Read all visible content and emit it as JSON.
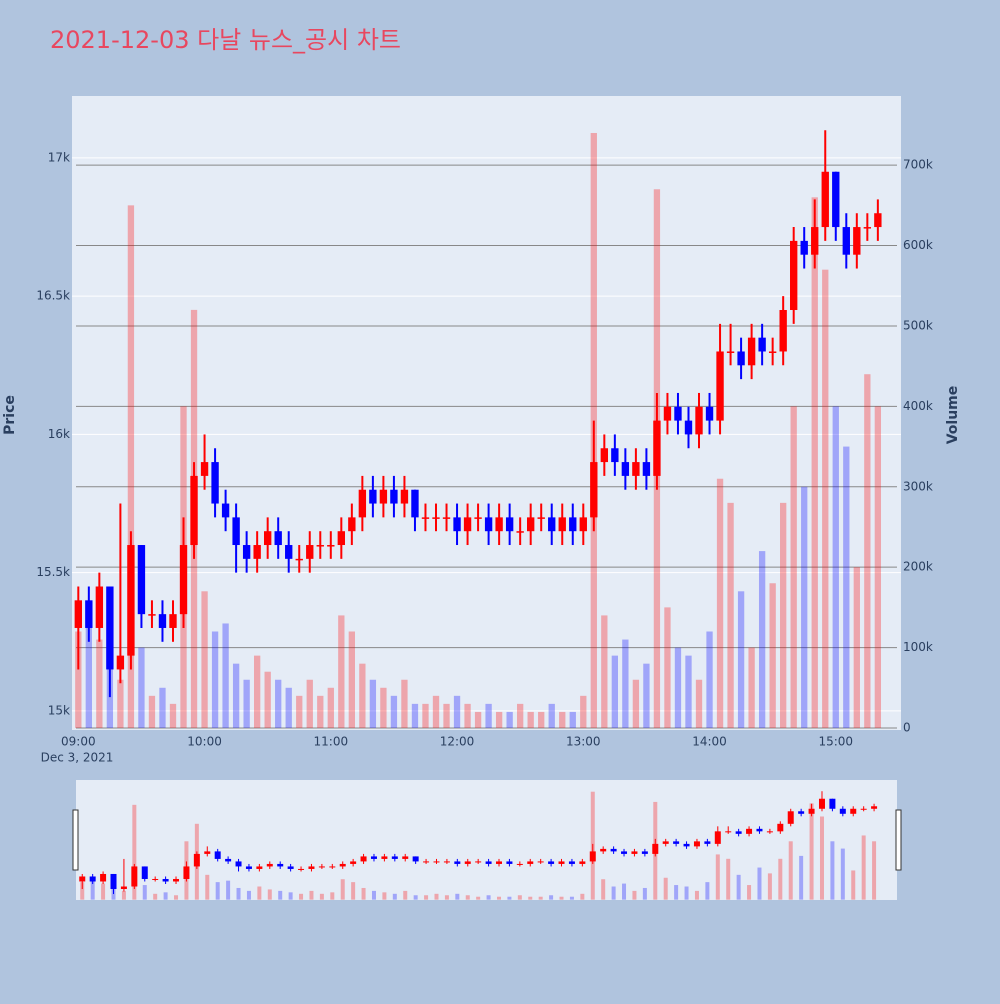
{
  "chart_data": {
    "type": "candlestick",
    "title": "2021-12-03 다날 뉴스_공시 차트",
    "y_title": "Price",
    "y2_title": "Volume",
    "x_sublabel": "Dec 3, 2021",
    "increasing_color": "#ff0000",
    "decreasing_color": "#0000ff",
    "x": [
      "09:00",
      "09:05",
      "09:10",
      "09:15",
      "09:20",
      "09:25",
      "09:30",
      "09:35",
      "09:40",
      "09:45",
      "09:50",
      "09:55",
      "10:00",
      "10:05",
      "10:10",
      "10:15",
      "10:20",
      "10:25",
      "10:30",
      "10:35",
      "10:40",
      "10:45",
      "10:50",
      "10:55",
      "11:00",
      "11:05",
      "11:10",
      "11:15",
      "11:20",
      "11:25",
      "11:30",
      "11:35",
      "11:40",
      "11:45",
      "11:50",
      "11:55",
      "12:00",
      "12:05",
      "12:10",
      "12:15",
      "12:20",
      "12:25",
      "12:30",
      "12:35",
      "12:40",
      "12:45",
      "12:50",
      "12:55",
      "13:00",
      "13:05",
      "13:10",
      "13:15",
      "13:20",
      "13:25",
      "13:30",
      "13:35",
      "13:40",
      "13:45",
      "13:50",
      "13:55",
      "14:00",
      "14:05",
      "14:10",
      "14:15",
      "14:20",
      "14:25",
      "14:30",
      "14:35",
      "14:40",
      "14:45",
      "14:50",
      "14:55",
      "15:00",
      "15:05",
      "15:10",
      "15:15",
      "15:20"
    ],
    "open": [
      15300,
      15400,
      15300,
      15450,
      15150,
      15200,
      15600,
      15350,
      15350,
      15300,
      15350,
      15600,
      15850,
      15900,
      15750,
      15700,
      15600,
      15550,
      15600,
      15650,
      15600,
      15550,
      15550,
      15600,
      15600,
      15600,
      15650,
      15700,
      15800,
      15750,
      15800,
      15750,
      15800,
      15700,
      15700,
      15700,
      15700,
      15650,
      15700,
      15700,
      15650,
      15700,
      15650,
      15650,
      15700,
      15700,
      15650,
      15700,
      15650,
      15700,
      15900,
      15950,
      15900,
      15850,
      15900,
      15850,
      16050,
      16100,
      16050,
      16000,
      16100,
      16050,
      16300,
      16300,
      16250,
      16350,
      16300,
      16300,
      16450,
      16700,
      16650,
      16750,
      16950,
      16750,
      16650,
      16750,
      16750
    ],
    "high": [
      15450,
      15450,
      15500,
      15450,
      15750,
      15650,
      15600,
      15400,
      15400,
      15400,
      15700,
      15900,
      16000,
      15950,
      15800,
      15750,
      15650,
      15650,
      15700,
      15700,
      15650,
      15600,
      15650,
      15650,
      15650,
      15700,
      15750,
      15850,
      15850,
      15850,
      15850,
      15850,
      15800,
      15750,
      15750,
      15750,
      15750,
      15750,
      15750,
      15750,
      15750,
      15750,
      15700,
      15750,
      15750,
      15750,
      15750,
      15750,
      15750,
      16050,
      16000,
      16000,
      15950,
      15950,
      15950,
      16150,
      16150,
      16150,
      16100,
      16150,
      16150,
      16400,
      16400,
      16350,
      16400,
      16400,
      16350,
      16500,
      16750,
      16750,
      16850,
      17100,
      16950,
      16800,
      16800,
      16800,
      16850
    ],
    "low": [
      15150,
      15250,
      15250,
      15050,
      15100,
      15150,
      15300,
      15300,
      15250,
      15250,
      15300,
      15550,
      15800,
      15700,
      15650,
      15500,
      15500,
      15500,
      15550,
      15550,
      15500,
      15500,
      15500,
      15550,
      15550,
      15550,
      15600,
      15650,
      15700,
      15700,
      15700,
      15700,
      15650,
      15650,
      15650,
      15650,
      15600,
      15600,
      15650,
      15600,
      15600,
      15600,
      15600,
      15600,
      15650,
      15600,
      15600,
      15600,
      15600,
      15650,
      15850,
      15850,
      15800,
      15800,
      15800,
      15800,
      16000,
      16000,
      15950,
      15950,
      16000,
      16000,
      16250,
      16200,
      16200,
      16250,
      16250,
      16250,
      16400,
      16600,
      16600,
      16700,
      16700,
      16600,
      16600,
      16700,
      16700
    ],
    "close": [
      15400,
      15300,
      15450,
      15150,
      15200,
      15600,
      15350,
      15350,
      15300,
      15350,
      15600,
      15850,
      15900,
      15750,
      15700,
      15600,
      15550,
      15600,
      15650,
      15600,
      15550,
      15550,
      15600,
      15600,
      15600,
      15650,
      15700,
      15800,
      15750,
      15800,
      15750,
      15800,
      15700,
      15700,
      15700,
      15700,
      15650,
      15700,
      15700,
      15650,
      15700,
      15650,
      15650,
      15700,
      15700,
      15650,
      15700,
      15650,
      15700,
      15900,
      15950,
      15900,
      15850,
      15900,
      15850,
      16050,
      16100,
      16050,
      16000,
      16100,
      16050,
      16300,
      16300,
      16250,
      16350,
      16300,
      16300,
      16450,
      16700,
      16650,
      16750,
      16950,
      16750,
      16650,
      16750,
      16750,
      16800
    ],
    "volume": [
      120000,
      150000,
      110000,
      90000,
      60000,
      650000,
      100000,
      40000,
      50000,
      30000,
      400000,
      520000,
      170000,
      120000,
      130000,
      80000,
      60000,
      90000,
      70000,
      60000,
      50000,
      40000,
      60000,
      40000,
      50000,
      140000,
      120000,
      80000,
      60000,
      50000,
      40000,
      60000,
      30000,
      30000,
      40000,
      30000,
      40000,
      30000,
      20000,
      30000,
      20000,
      20000,
      30000,
      20000,
      20000,
      30000,
      20000,
      20000,
      40000,
      740000,
      140000,
      90000,
      110000,
      60000,
      80000,
      670000,
      150000,
      100000,
      90000,
      60000,
      120000,
      310000,
      280000,
      170000,
      100000,
      220000,
      180000,
      280000,
      400000,
      300000,
      660000,
      570000,
      400000,
      350000,
      200000,
      440000,
      400000
    ],
    "xlim": [
      "08:57",
      "15:31"
    ],
    "xticks": [
      "09:00",
      "10:00",
      "11:00",
      "12:00",
      "13:00",
      "14:00",
      "15:00"
    ],
    "ylim": [
      14931,
      17224
    ],
    "yticks": [
      {
        "value": 15000,
        "label": "15k"
      },
      {
        "value": 15500,
        "label": "15.5k"
      },
      {
        "value": 16000,
        "label": "16k"
      },
      {
        "value": 16500,
        "label": "16.5k"
      },
      {
        "value": 17000,
        "label": "17k"
      }
    ],
    "y2lim": [
      -2500,
      786000
    ],
    "y2ticks": [
      0,
      {
        "value": 100000,
        "label": "100k"
      },
      {
        "value": 200000,
        "label": "200k"
      },
      {
        "value": 300000,
        "label": "300k"
      },
      {
        "value": 400000,
        "label": "400k"
      },
      {
        "value": 500000,
        "label": "500k"
      },
      {
        "value": 600000,
        "label": "600k"
      },
      {
        "value": 700000,
        "label": "700k"
      }
    ],
    "grid": true
  }
}
